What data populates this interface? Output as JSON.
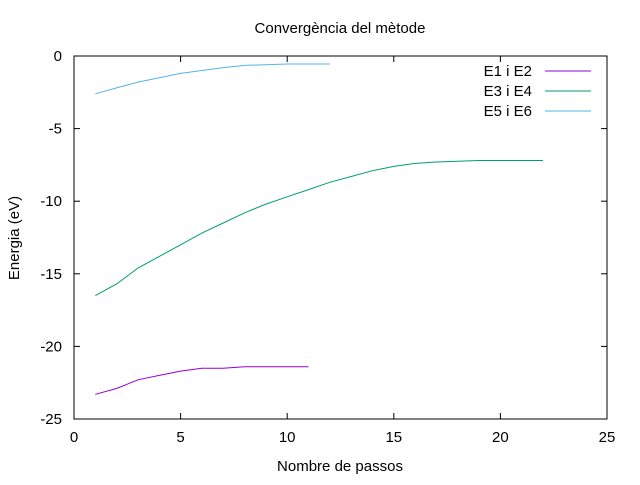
{
  "chart_data": {
    "type": "line",
    "title": "Convergència del mètode",
    "xlabel": "Nombre de passos",
    "ylabel": "Energia (eV)",
    "xlim": [
      0,
      25
    ],
    "ylim": [
      -25,
      0
    ],
    "xticks": [
      0,
      5,
      10,
      15,
      20,
      25
    ],
    "yticks": [
      0,
      -5,
      -10,
      -15,
      -20,
      -25
    ],
    "grid": false,
    "legend_position": "top-right",
    "series": [
      {
        "name": "E1 i E2",
        "color": "#9400d3",
        "x": [
          1,
          2,
          3,
          4,
          5,
          6,
          7,
          8,
          9,
          10,
          11
        ],
        "y": [
          -23.3,
          -22.9,
          -22.3,
          -22.0,
          -21.7,
          -21.5,
          -21.5,
          -21.4,
          -21.4,
          -21.4,
          -21.4
        ]
      },
      {
        "name": "E3 i E4",
        "color": "#009e73",
        "x": [
          1,
          2,
          3,
          4,
          5,
          6,
          7,
          8,
          9,
          10,
          11,
          12,
          13,
          14,
          15,
          16,
          17,
          18,
          19,
          20,
          21,
          22
        ],
        "y": [
          -16.5,
          -15.7,
          -14.6,
          -13.8,
          -13.0,
          -12.2,
          -11.5,
          -10.8,
          -10.2,
          -9.7,
          -9.2,
          -8.7,
          -8.3,
          -7.9,
          -7.6,
          -7.4,
          -7.3,
          -7.25,
          -7.2,
          -7.2,
          -7.2,
          -7.2
        ]
      },
      {
        "name": "E5 i E6",
        "color": "#56b4e9",
        "x": [
          1,
          2,
          3,
          4,
          5,
          6,
          7,
          8,
          9,
          10,
          11,
          12
        ],
        "y": [
          -2.6,
          -2.2,
          -1.8,
          -1.5,
          -1.2,
          -1.0,
          -0.8,
          -0.65,
          -0.6,
          -0.55,
          -0.55,
          -0.55
        ]
      }
    ]
  }
}
